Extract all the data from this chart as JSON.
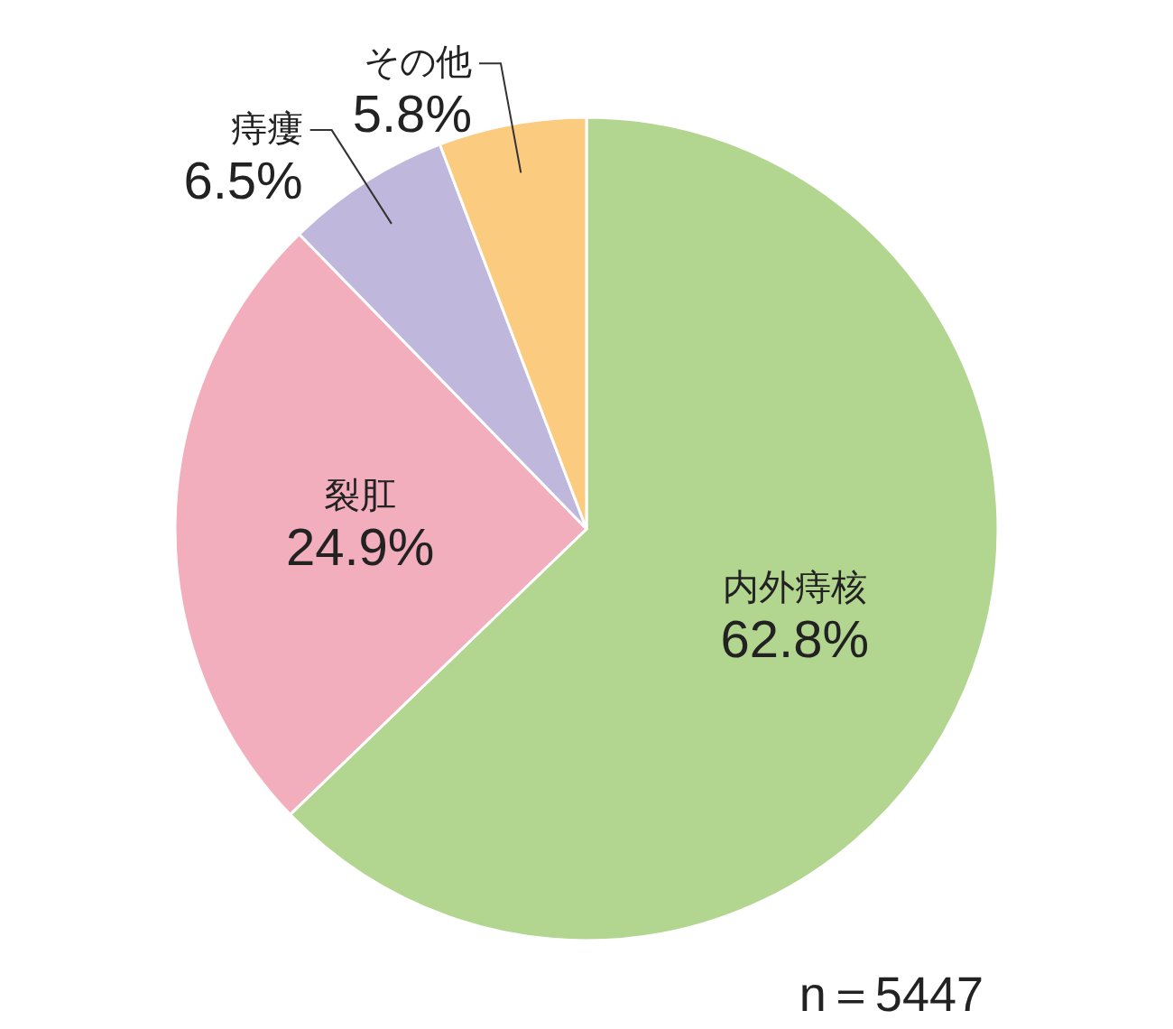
{
  "chart_data": {
    "type": "pie",
    "categories": [
      "内外痔核",
      "裂肛",
      "痔瘻",
      "その他"
    ],
    "values": [
      62.8,
      24.9,
      6.5,
      5.8
    ],
    "value_labels": [
      "62.8%",
      "24.9%",
      "6.5%",
      "5.8%"
    ],
    "colors": [
      "#b2d68f",
      "#f2aebd",
      "#c0b8dc",
      "#fbcc80"
    ],
    "annotations": [
      "n＝5447"
    ]
  }
}
